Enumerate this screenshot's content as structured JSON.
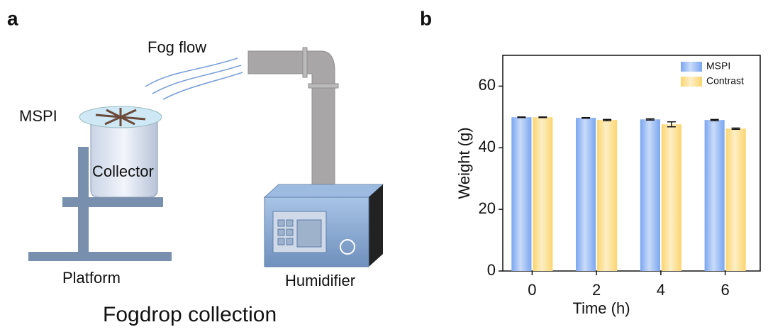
{
  "panel_labels": [
    "a",
    "b"
  ],
  "panel_a": {
    "fog_flow": "Fog flow",
    "mspi": "MSPI",
    "collector": "Collector",
    "platform": "Platform",
    "humidifier": "Humidifier",
    "caption": "Fogdrop collection"
  },
  "chart_data": {
    "type": "bar",
    "x_label": "Time (h)",
    "y_label": "Weight (g)",
    "categories": [
      "0",
      "2",
      "4",
      "6"
    ],
    "series": [
      {
        "name": "MSPI",
        "color": "#7aa6f0",
        "values": [
          49.9,
          49.7,
          49.2,
          49.0
        ],
        "errors": [
          0.1,
          0.1,
          0.2,
          0.2
        ]
      },
      {
        "name": "Contrast",
        "color": "#fbd56f",
        "values": [
          49.9,
          49.0,
          47.6,
          46.2
        ],
        "errors": [
          0.1,
          0.2,
          0.8,
          0.2
        ]
      }
    ],
    "ylim": [
      0,
      70
    ],
    "yticks": [
      0,
      20,
      40,
      60
    ],
    "grid": false,
    "legend": "upper right"
  }
}
